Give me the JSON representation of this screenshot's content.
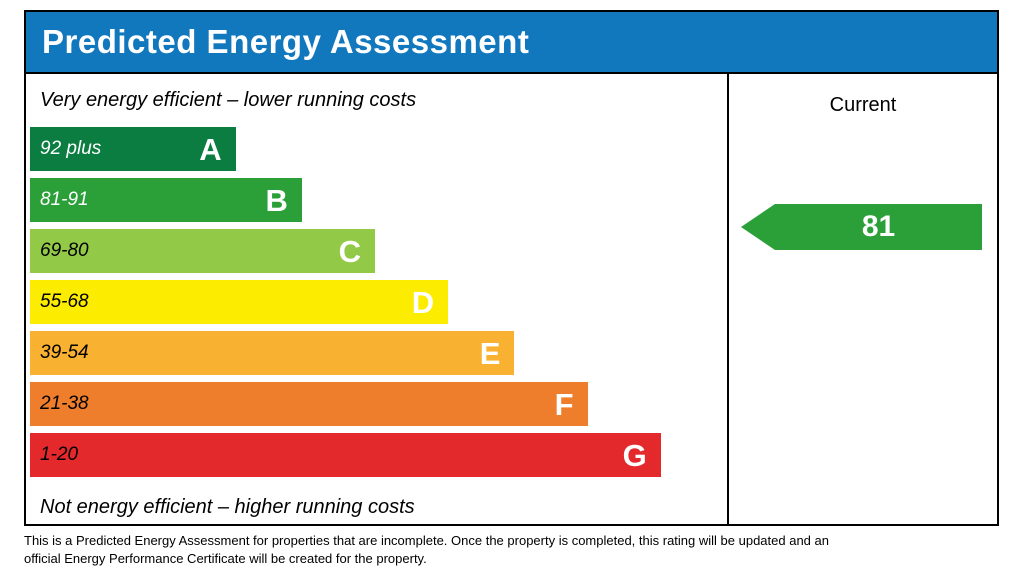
{
  "header": {
    "title": "Predicted Energy Assessment"
  },
  "colors": {
    "title_bar": "#1278be",
    "border": "#000000"
  },
  "chart_data": {
    "type": "bar",
    "title": "Predicted Energy Assessment",
    "top_label": "Very energy efficient – lower running costs",
    "bottom_label": "Not energy efficient – higher running costs",
    "current_column_header": "Current",
    "bands": [
      {
        "letter": "A",
        "range": "92 plus",
        "color": "#0b7d41",
        "text_color": "#ffffff",
        "width_pct": 29.5
      },
      {
        "letter": "B",
        "range": "81-91",
        "color": "#2ba039",
        "text_color": "#ffffff",
        "width_pct": 39
      },
      {
        "letter": "C",
        "range": "69-80",
        "color": "#92ca47",
        "text_color": "#000000",
        "width_pct": 49.5
      },
      {
        "letter": "D",
        "range": "55-68",
        "color": "#fcec00",
        "text_color": "#000000",
        "width_pct": 60
      },
      {
        "letter": "E",
        "range": "39-54",
        "color": "#f8b131",
        "text_color": "#000000",
        "width_pct": 69.5
      },
      {
        "letter": "F",
        "range": "21-38",
        "color": "#ee7e2b",
        "text_color": "#000000",
        "width_pct": 80
      },
      {
        "letter": "G",
        "range": "1-20",
        "color": "#e4292d",
        "text_color": "#000000",
        "width_pct": 90.5
      }
    ],
    "current": {
      "value": "81",
      "band": "B",
      "color": "#2ba039"
    }
  },
  "footer": {
    "text": "This is a Predicted Energy Assessment for properties that are incomplete. Once the property is completed, this rating will be updated and an official Energy Performance Certificate will be created for the property."
  }
}
